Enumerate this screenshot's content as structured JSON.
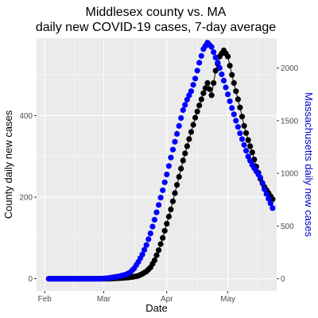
{
  "chart_data": {
    "type": "scatter",
    "title_lines": [
      "Middlesex county vs. MA",
      "daily new COVID-19 cases, 7-day average"
    ],
    "xlabel": "Date",
    "ylabel": "County daily new cases",
    "y2label": "Massachusetts daily new cases",
    "xlim": [
      "2020-01-28",
      "2020-05-25"
    ],
    "xticks": [
      {
        "date": "2020-02-01",
        "label": "Feb"
      },
      {
        "date": "2020-03-01",
        "label": "Mar"
      },
      {
        "date": "2020-04-01",
        "label": "Apr"
      },
      {
        "date": "2020-05-01",
        "label": "May"
      }
    ],
    "ylim": [
      -30,
      590
    ],
    "yticks": [
      0,
      200,
      400
    ],
    "y2lim": [
      -116,
      2283
    ],
    "y2ticks": [
      0,
      500,
      1000,
      1500,
      2000
    ],
    "grid": true,
    "colors": {
      "panel": "#ebebeb",
      "grid": "#ffffff",
      "county": "#000000",
      "state": "#0000ff",
      "state_axis": "#0000cc"
    },
    "series": [
      {
        "axis": "left",
        "color": "#000000",
        "connect_line": true,
        "points": [
          [
            "2020-02-03",
            0
          ],
          [
            "2020-02-08",
            0
          ],
          [
            "2020-02-13",
            0
          ],
          [
            "2020-02-18",
            0
          ],
          [
            "2020-02-23",
            0
          ],
          [
            "2020-02-28",
            0
          ],
          [
            "2020-03-03",
            0
          ],
          [
            "2020-03-07",
            1
          ],
          [
            "2020-03-10",
            2
          ],
          [
            "2020-03-13",
            3
          ],
          [
            "2020-03-16",
            5
          ],
          [
            "2020-03-18",
            7
          ],
          [
            "2020-03-20",
            12
          ],
          [
            "2020-03-22",
            18
          ],
          [
            "2020-03-24",
            28
          ],
          [
            "2020-03-26",
            45
          ],
          [
            "2020-03-28",
            70
          ],
          [
            "2020-03-30",
            100
          ],
          [
            "2020-04-01",
            135
          ],
          [
            "2020-04-03",
            170
          ],
          [
            "2020-04-05",
            210
          ],
          [
            "2020-04-07",
            250
          ],
          [
            "2020-04-09",
            290
          ],
          [
            "2020-04-11",
            325
          ],
          [
            "2020-04-13",
            360
          ],
          [
            "2020-04-15",
            395
          ],
          [
            "2020-04-17",
            425
          ],
          [
            "2020-04-19",
            455
          ],
          [
            "2020-04-21",
            480
          ],
          [
            "2020-04-23",
            450
          ],
          [
            "2020-04-25",
            510
          ],
          [
            "2020-04-27",
            545
          ],
          [
            "2020-04-29",
            560
          ],
          [
            "2020-05-01",
            545
          ],
          [
            "2020-05-03",
            500
          ],
          [
            "2020-05-05",
            460
          ],
          [
            "2020-05-07",
            420
          ],
          [
            "2020-05-09",
            375
          ],
          [
            "2020-05-11",
            340
          ],
          [
            "2020-05-13",
            310
          ],
          [
            "2020-05-15",
            275
          ],
          [
            "2020-05-17",
            245
          ],
          [
            "2020-05-19",
            225
          ],
          [
            "2020-05-21",
            210
          ],
          [
            "2020-05-23",
            195
          ]
        ]
      },
      {
        "axis": "right",
        "color": "#0000ff",
        "connect_line": false,
        "points": [
          [
            "2020-02-03",
            0
          ],
          [
            "2020-02-08",
            0
          ],
          [
            "2020-02-13",
            0
          ],
          [
            "2020-02-18",
            0
          ],
          [
            "2020-02-23",
            0
          ],
          [
            "2020-02-28",
            0
          ],
          [
            "2020-03-03",
            5
          ],
          [
            "2020-03-06",
            15
          ],
          [
            "2020-03-09",
            25
          ],
          [
            "2020-03-12",
            40
          ],
          [
            "2020-03-14",
            60
          ],
          [
            "2020-03-16",
            100
          ],
          [
            "2020-03-18",
            160
          ],
          [
            "2020-03-20",
            230
          ],
          [
            "2020-03-22",
            320
          ],
          [
            "2020-03-24",
            430
          ],
          [
            "2020-03-26",
            560
          ],
          [
            "2020-03-28",
            700
          ],
          [
            "2020-03-30",
            840
          ],
          [
            "2020-04-01",
            990
          ],
          [
            "2020-04-03",
            1150
          ],
          [
            "2020-04-05",
            1300
          ],
          [
            "2020-04-07",
            1450
          ],
          [
            "2020-04-09",
            1600
          ],
          [
            "2020-04-11",
            1700
          ],
          [
            "2020-04-13",
            1780
          ],
          [
            "2020-04-15",
            1900
          ],
          [
            "2020-04-17",
            2050
          ],
          [
            "2020-04-19",
            2180
          ],
          [
            "2020-04-21",
            2240
          ],
          [
            "2020-04-23",
            2200
          ],
          [
            "2020-04-25",
            2100
          ],
          [
            "2020-04-27",
            2000
          ],
          [
            "2020-04-29",
            1880
          ],
          [
            "2020-05-01",
            1750
          ],
          [
            "2020-05-03",
            1620
          ],
          [
            "2020-05-05",
            1500
          ],
          [
            "2020-05-07",
            1380
          ],
          [
            "2020-05-09",
            1270
          ],
          [
            "2020-05-11",
            1160
          ],
          [
            "2020-05-13",
            1080
          ],
          [
            "2020-05-15",
            1020
          ],
          [
            "2020-05-17",
            960
          ],
          [
            "2020-05-19",
            850
          ],
          [
            "2020-05-21",
            760
          ],
          [
            "2020-05-23",
            670
          ]
        ]
      }
    ]
  }
}
